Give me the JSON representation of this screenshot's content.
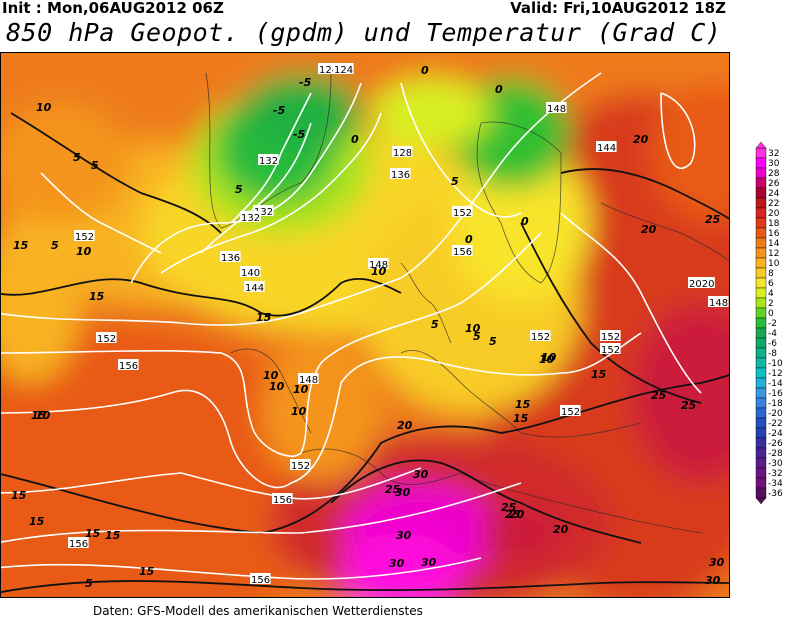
{
  "header": {
    "init": "Init : Mon,06AUG2012 06Z",
    "valid": "Valid: Fri,10AUG2012 18Z",
    "title": "850 hPa Geopot. (gpdm) und Temperatur (Grad C)"
  },
  "footer": "Daten: GFS-Modell des amerikanischen Wetterdienstes",
  "legend": {
    "values": [
      "32",
      "30",
      "28",
      "26",
      "24",
      "22",
      "20",
      "18",
      "16",
      "14",
      "12",
      "10",
      "8",
      "6",
      "4",
      "2",
      "0",
      "-2",
      "-4",
      "-6",
      "-8",
      "-10",
      "-12",
      "-14",
      "-16",
      "-18",
      "-20",
      "-22",
      "-24",
      "-26",
      "-28",
      "-30",
      "-32",
      "-34",
      "-36"
    ],
    "colors": [
      "#ff33dd",
      "#ff00ff",
      "#ee00cc",
      "#cc0066",
      "#aa0033",
      "#c01818",
      "#d82424",
      "#e43a1c",
      "#e85a18",
      "#ee7a1c",
      "#f4941e",
      "#f8b222",
      "#f8cc26",
      "#f8e42c",
      "#d8ee20",
      "#a8e41c",
      "#60d228",
      "#28bc3c",
      "#18a850",
      "#12a86a",
      "#10b088",
      "#10b8a4",
      "#10c0c0",
      "#20b0d8",
      "#3898e0",
      "#3880e0",
      "#2868d0",
      "#2050c0",
      "#2840b0",
      "#3830a0",
      "#4c2496",
      "#5c1c8c",
      "#6c1482",
      "#701078",
      "#56105c"
    ]
  },
  "geopotential_labels": [
    {
      "text": "124"
    },
    {
      "text": "124"
    },
    {
      "text": "128"
    },
    {
      "text": "132"
    },
    {
      "text": "132"
    },
    {
      "text": "132"
    },
    {
      "text": "136"
    },
    {
      "text": "136"
    },
    {
      "text": "140"
    },
    {
      "text": "144"
    },
    {
      "text": "148"
    },
    {
      "text": "148"
    },
    {
      "text": "148"
    },
    {
      "text": "148"
    },
    {
      "text": "152"
    },
    {
      "text": "152"
    },
    {
      "text": "152"
    },
    {
      "text": "152"
    },
    {
      "text": "152"
    },
    {
      "text": "152"
    },
    {
      "text": "152"
    },
    {
      "text": "152"
    },
    {
      "text": "156"
    },
    {
      "text": "156"
    },
    {
      "text": "156"
    },
    {
      "text": "156"
    },
    {
      "text": "156"
    },
    {
      "text": "2020"
    },
    {
      "text": "144"
    }
  ],
  "temperature_labels": [
    {
      "text": "10"
    },
    {
      "text": "5"
    },
    {
      "text": "5"
    },
    {
      "text": "5"
    },
    {
      "text": "10"
    },
    {
      "text": "15"
    },
    {
      "text": "15"
    },
    {
      "text": "15"
    },
    {
      "text": "15"
    },
    {
      "text": "15"
    },
    {
      "text": "10"
    },
    {
      "text": "10"
    },
    {
      "text": "10"
    },
    {
      "text": "10"
    },
    {
      "text": "10"
    },
    {
      "text": "10"
    },
    {
      "text": "10"
    },
    {
      "text": "15"
    },
    {
      "text": "15"
    },
    {
      "text": "20"
    },
    {
      "text": "20"
    },
    {
      "text": "20"
    },
    {
      "text": "20"
    },
    {
      "text": "25"
    },
    {
      "text": "25"
    },
    {
      "text": "25"
    },
    {
      "text": "25"
    },
    {
      "text": "25"
    },
    {
      "text": "25"
    },
    {
      "text": "30"
    },
    {
      "text": "30"
    },
    {
      "text": "30"
    },
    {
      "text": "30"
    },
    {
      "text": "30"
    },
    {
      "text": "30"
    },
    {
      "text": "30"
    },
    {
      "text": "-5"
    },
    {
      "text": "-5"
    },
    {
      "text": "-5"
    },
    {
      "text": "0"
    },
    {
      "text": "0"
    },
    {
      "text": "0"
    },
    {
      "text": "0"
    },
    {
      "text": "0"
    },
    {
      "text": "5"
    },
    {
      "text": "5"
    },
    {
      "text": "5"
    },
    {
      "text": "5"
    },
    {
      "text": "15"
    },
    {
      "text": "15"
    },
    {
      "text": "15"
    },
    {
      "text": "20"
    },
    {
      "text": "15"
    },
    {
      "text": "15"
    },
    {
      "text": "5"
    },
    {
      "text": "10"
    },
    {
      "text": "10"
    },
    {
      "text": "5"
    }
  ]
}
